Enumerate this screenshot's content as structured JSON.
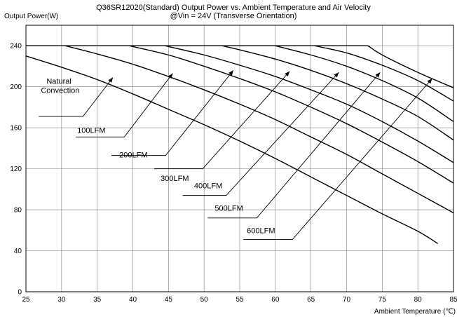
{
  "chart_data": {
    "type": "line",
    "title": "Q36SR12020(Standard) Output Power vs. Ambient Temperature and Air Velocity",
    "subtitle": "@Vin = 24V (Transverse Orientation)",
    "xlabel": "Ambient Temperature (℃)",
    "ylabel": "Output Power(W)",
    "xlim": [
      25,
      85
    ],
    "ylim": [
      0,
      260
    ],
    "x_ticks": [
      "25",
      "30",
      "35",
      "40",
      "45",
      "50",
      "55",
      "60",
      "65",
      "70",
      "75",
      "80",
      "85"
    ],
    "y_ticks": [
      "0",
      "40",
      "80",
      "120",
      "160",
      "200",
      "240"
    ],
    "grid": true,
    "series": [
      {
        "name": "Natural Convection",
        "points": [
          [
            25,
            230
          ],
          [
            30,
            219
          ],
          [
            35,
            207
          ],
          [
            40,
            193
          ],
          [
            45,
            178
          ],
          [
            50,
            163
          ],
          [
            55,
            147
          ],
          [
            60,
            130
          ],
          [
            65,
            112
          ],
          [
            70,
            94
          ],
          [
            75,
            76
          ],
          [
            80,
            59
          ],
          [
            82.8,
            47
          ]
        ]
      },
      {
        "name": "100LFM",
        "points": [
          [
            30.5,
            240
          ],
          [
            35,
            232
          ],
          [
            40,
            222
          ],
          [
            45,
            210
          ],
          [
            50,
            197
          ],
          [
            55,
            183
          ],
          [
            60,
            168
          ],
          [
            65,
            151
          ],
          [
            70,
            134
          ],
          [
            75,
            115
          ],
          [
            80,
            96
          ],
          [
            85,
            77
          ]
        ]
      },
      {
        "name": "200LFM",
        "points": [
          [
            39.5,
            240
          ],
          [
            45,
            231
          ],
          [
            50,
            220
          ],
          [
            55,
            208
          ],
          [
            60,
            195
          ],
          [
            65,
            180
          ],
          [
            70,
            164
          ],
          [
            75,
            146
          ],
          [
            80,
            127
          ],
          [
            85,
            106
          ]
        ]
      },
      {
        "name": "300LFM",
        "points": [
          [
            44.5,
            240
          ],
          [
            50,
            231
          ],
          [
            55,
            221
          ],
          [
            60,
            210
          ],
          [
            65,
            197
          ],
          [
            70,
            183
          ],
          [
            75,
            166
          ],
          [
            80,
            147
          ],
          [
            85,
            126
          ]
        ]
      },
      {
        "name": "400LFM",
        "points": [
          [
            52.5,
            240
          ],
          [
            55,
            236
          ],
          [
            60,
            227
          ],
          [
            65,
            216
          ],
          [
            70,
            203
          ],
          [
            75,
            188
          ],
          [
            80,
            171
          ],
          [
            85,
            148
          ]
        ]
      },
      {
        "name": "500LFM",
        "points": [
          [
            60,
            240
          ],
          [
            65,
            231
          ],
          [
            70,
            220
          ],
          [
            75,
            206
          ],
          [
            80,
            189
          ],
          [
            85,
            166
          ]
        ]
      },
      {
        "name": "600LFM",
        "points": [
          [
            65.5,
            240
          ],
          [
            70,
            233
          ],
          [
            75,
            221
          ],
          [
            80,
            206
          ],
          [
            85,
            186
          ]
        ]
      },
      {
        "name": "",
        "points": [
          [
            73,
            240
          ],
          [
            75,
            231
          ],
          [
            80,
            214
          ],
          [
            85,
            199
          ]
        ]
      }
    ],
    "annotations": [
      {
        "label": "Natural\nConvection",
        "text_at": [
          27.1,
          203
        ],
        "leader": [
          [
            26.8,
            171
          ],
          [
            33,
            171
          ],
          [
            37.2,
            209
          ]
        ]
      },
      {
        "label": "100LFM",
        "text_at": [
          32.2,
          155
        ],
        "leader": [
          [
            32,
            151
          ],
          [
            38.8,
            151
          ],
          [
            45.6,
            213
          ]
        ]
      },
      {
        "label": "200LFM",
        "text_at": [
          38.1,
          131
        ],
        "leader": [
          [
            37,
            133
          ],
          [
            44.6,
            133
          ],
          [
            54.1,
            216
          ]
        ]
      },
      {
        "label": "300LFM",
        "text_at": [
          43.9,
          108
        ],
        "leader": [
          [
            43,
            120
          ],
          [
            49.8,
            120
          ],
          [
            62,
            215
          ]
        ]
      },
      {
        "label": "400LFM",
        "text_at": [
          48.6,
          101
        ],
        "leader": [
          [
            47,
            94
          ],
          [
            53.1,
            94
          ],
          [
            68.9,
            214
          ]
        ]
      },
      {
        "label": "500LFM",
        "text_at": [
          51.5,
          79
        ],
        "leader": [
          [
            50.5,
            72
          ],
          [
            57.4,
            72
          ],
          [
            74.7,
            214
          ]
        ]
      },
      {
        "label": "600LFM",
        "text_at": [
          56,
          57
        ],
        "leader": [
          [
            55.5,
            51
          ],
          [
            62.4,
            51
          ],
          [
            82,
            208
          ]
        ]
      }
    ]
  }
}
